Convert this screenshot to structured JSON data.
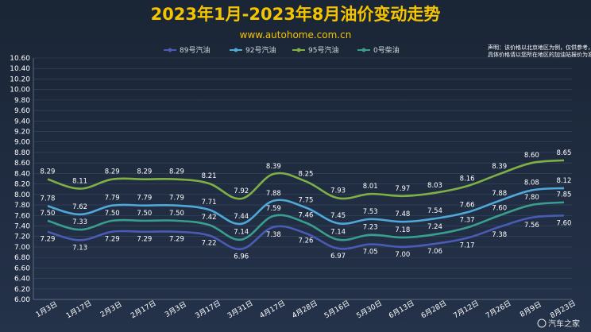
{
  "page": {
    "title": "2023年1月-2023年8月油价变动走势",
    "subtitle": "www.autohome.com.cn",
    "note_line1": "声明：该价格以北京地区为例，仅供参考，",
    "note_line2": "具体价格请以您所在地区的加油站报价为准。",
    "watermark": "汽车之家"
  },
  "chart_data": {
    "type": "line",
    "title": "2023年1月-2023年8月油价变动走势",
    "categories": [
      "1月3日",
      "1月17日",
      "2月3日",
      "2月17日",
      "3月3日",
      "3月17日",
      "3月31日",
      "4月17日",
      "4月28日",
      "5月16日",
      "5月30日",
      "6月13日",
      "6月28日",
      "7月12日",
      "7月26日",
      "8月9日",
      "8月23日"
    ],
    "ylim": [
      6.0,
      10.6
    ],
    "yticks": [
      "6.00",
      "6.20",
      "6.40",
      "6.60",
      "6.80",
      "7.00",
      "7.20",
      "7.40",
      "7.60",
      "7.80",
      "8.00",
      "8.20",
      "8.40",
      "8.60",
      "8.80",
      "9.00",
      "9.20",
      "9.40",
      "9.60",
      "9.80",
      "10.00",
      "10.20",
      "10.40",
      "10.60"
    ],
    "grid": true,
    "legend_position": "top-center",
    "series": [
      {
        "name": "89号汽油",
        "color": "#4a5bb5",
        "values": [
          7.29,
          7.13,
          7.29,
          7.29,
          7.29,
          7.22,
          6.96,
          7.38,
          7.26,
          6.97,
          7.05,
          7.0,
          7.06,
          7.17,
          7.38,
          7.56,
          7.6
        ]
      },
      {
        "name": "92号汽油",
        "color": "#4fa8d8",
        "values": [
          7.78,
          7.62,
          7.79,
          7.79,
          7.79,
          7.71,
          7.44,
          7.88,
          7.75,
          7.45,
          7.53,
          7.48,
          7.54,
          7.66,
          7.88,
          8.08,
          8.12
        ]
      },
      {
        "name": "95号汽油",
        "color": "#7fb045",
        "values": [
          8.29,
          8.11,
          8.29,
          8.29,
          8.29,
          8.21,
          7.92,
          8.39,
          8.25,
          7.93,
          8.01,
          7.97,
          8.03,
          8.16,
          8.39,
          8.6,
          8.65
        ]
      },
      {
        "name": "0号柴油",
        "color": "#3a9e8e",
        "values": [
          7.5,
          7.33,
          7.5,
          7.5,
          7.5,
          7.42,
          7.14,
          7.59,
          7.46,
          7.14,
          7.23,
          7.18,
          7.24,
          7.37,
          7.6,
          7.8,
          7.85
        ]
      }
    ]
  }
}
